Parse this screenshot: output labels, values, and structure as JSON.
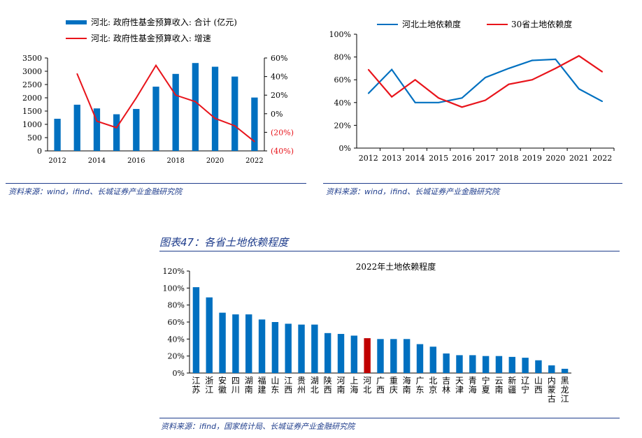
{
  "colors": {
    "blue": "#0070c0",
    "red": "#e8141b",
    "accent": "#1f3d8c",
    "highlight": "#c00000"
  },
  "chart_data": [
    {
      "type": "bar+line",
      "legend": [
        "河北: 政府性基金预算收入: 合计 (亿元)",
        "河北: 政府性基金预算收入: 增速"
      ],
      "x": [
        2012,
        2013,
        2014,
        2015,
        2016,
        2017,
        2018,
        2019,
        2020,
        2021,
        2022
      ],
      "xticks": [
        "2012",
        "2014",
        "2016",
        "2018",
        "2020",
        "2022"
      ],
      "series": [
        {
          "name": "河北: 政府性基金预算收入: 合计 (亿元)",
          "kind": "bar",
          "values": [
            1210,
            1740,
            1600,
            1380,
            1580,
            2420,
            2900,
            3310,
            3170,
            2800,
            2010
          ]
        },
        {
          "name": "河北: 政府性基金预算收入: 增速",
          "kind": "line",
          "unit": "%",
          "values": [
            null,
            43,
            -8,
            -15,
            17,
            52,
            20,
            13,
            -5,
            -13,
            -30
          ]
        }
      ],
      "yleft": {
        "ticks": [
          "0",
          "500",
          "1000",
          "1500",
          "2000",
          "2500",
          "3000",
          "3500"
        ],
        "lim": [
          0,
          3500
        ]
      },
      "yright": {
        "ticks": [
          "60%",
          "40%",
          "20%",
          "0%",
          "(20%)",
          "(40%)"
        ],
        "lim": [
          -40,
          60
        ]
      }
    },
    {
      "type": "line",
      "legend": [
        "河北土地依赖度",
        "30省土地依赖度"
      ],
      "x": [
        "2012",
        "2013",
        "2014",
        "2015",
        "2016",
        "2017",
        "2018",
        "2019",
        "2020",
        "2021",
        "2022"
      ],
      "series": [
        {
          "name": "河北土地依赖度",
          "values": [
            48,
            69,
            40,
            40,
            44,
            62,
            70,
            77,
            78,
            52,
            41
          ]
        },
        {
          "name": "30省土地依赖度",
          "values": [
            69,
            45,
            60,
            44,
            36,
            42,
            56,
            60,
            70,
            81,
            67
          ]
        }
      ],
      "yticks": [
        "0%",
        "20%",
        "40%",
        "60%",
        "80%",
        "100%"
      ],
      "ylim": [
        0,
        100
      ]
    },
    {
      "type": "bar",
      "title": "2022年土地依赖程度",
      "categories": [
        "江苏",
        "浙江",
        "安徽",
        "四川",
        "湖南",
        "福建",
        "山东",
        "江西",
        "贵州",
        "湖北",
        "陕西",
        "河南",
        "上海",
        "河北",
        "广西",
        "重庆",
        "海南",
        "广东",
        "北京",
        "吉林",
        "天津",
        "青海",
        "宁夏",
        "云南",
        "新疆",
        "辽宁",
        "山西",
        "内蒙古",
        "黑龙江"
      ],
      "values": [
        101,
        89,
        71,
        69,
        69,
        63,
        60,
        58,
        57,
        57,
        47,
        46,
        44,
        41,
        40,
        40,
        40,
        34,
        31,
        23,
        21,
        21,
        20,
        20,
        19,
        18,
        15,
        9,
        5
      ],
      "highlight": "河北",
      "yticks": [
        "0%",
        "20%",
        "40%",
        "60%",
        "80%",
        "100%",
        "120%"
      ],
      "ylim": [
        0,
        120
      ]
    }
  ],
  "sources": {
    "s1": "资料来源：wind，ifind、长城证券产业金融研究院",
    "s2": "资料来源：wind，ifind、长城证券产业金融研究院",
    "s3": "资料来源：ifind，国家统计局、长城证券产业金融研究院"
  },
  "fig_title": "图表47：各省土地依赖程度"
}
